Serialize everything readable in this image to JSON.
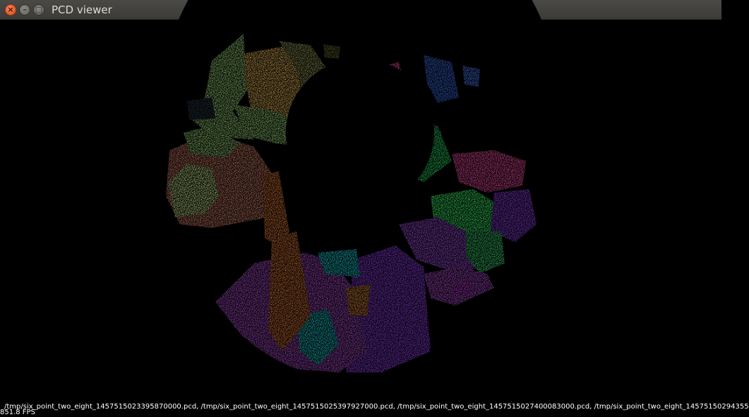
{
  "window": {
    "title": "PCD viewer",
    "close_glyph": "×",
    "minimize_glyph": "–",
    "maximize_glyph": "□"
  },
  "viewer": {
    "file_list": "/tmp/six_point_two_eight_1457515023395870000.pcd, /tmp/six_point_two_eight_1457515025397927000.pcd, /tmp/six_point_two_eight_1457515027400083000.pcd, /tmp/six_point_two_eight_14575150294355",
    "fps": "851.8 FPS",
    "background_color": "#000000",
    "cluster_colors": [
      "#9bd47a",
      "#e8b85a",
      "#9a9a5a",
      "#d6836a",
      "#e07a3a",
      "#b04fd0",
      "#9140e8",
      "#20d0d8",
      "#3cf06a",
      "#f04fa0",
      "#3a6ae0",
      "#f0e050",
      "#2a3a48"
    ]
  }
}
